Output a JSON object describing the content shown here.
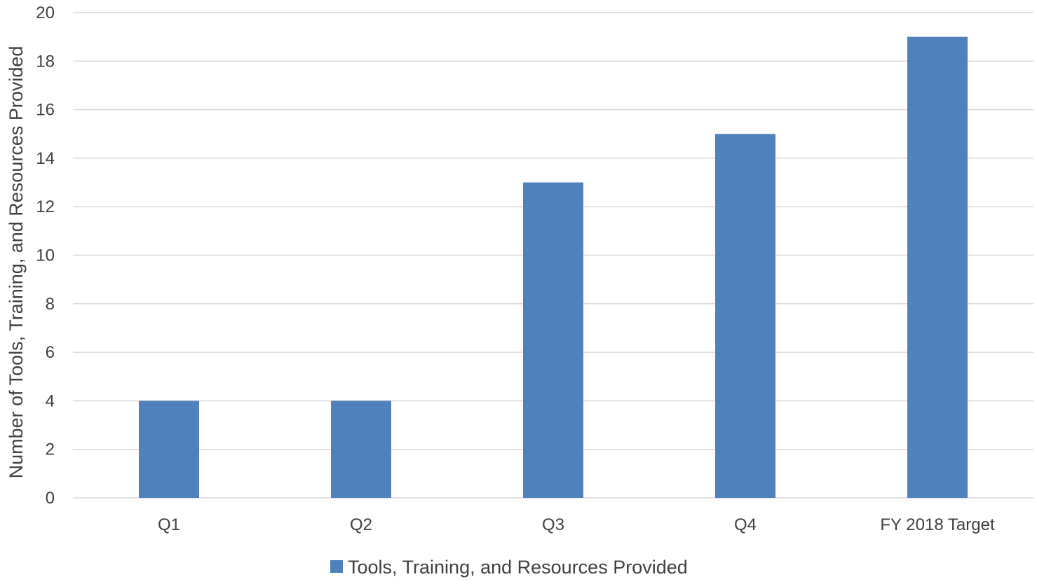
{
  "chart_data": {
    "type": "bar",
    "title": "",
    "xlabel": "",
    "ylabel": "Number of Tools, Training, and Resources Provided",
    "categories": [
      "Q1",
      "Q2",
      "Q3",
      "Q4",
      "FY 2018 Target"
    ],
    "series": [
      {
        "name": "Tools, Training, and Resources Provided",
        "values": [
          4,
          4,
          13,
          15,
          19
        ],
        "color": "#4F81BD"
      }
    ],
    "ylim": [
      0,
      20
    ],
    "yticks": [
      0,
      2,
      4,
      6,
      8,
      10,
      12,
      14,
      16,
      18,
      20
    ],
    "grid": true,
    "gridColor": "#D9D9D9",
    "legend": "bottom"
  }
}
